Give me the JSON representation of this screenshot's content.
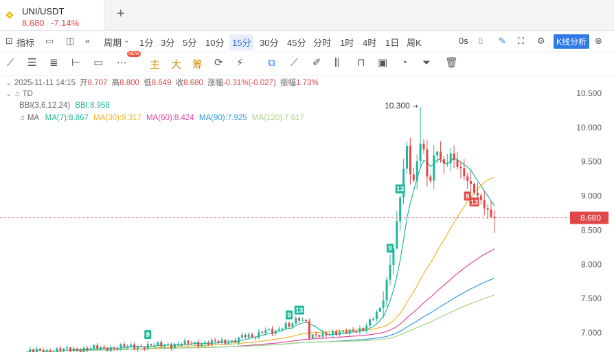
{
  "tab": {
    "symbol": "UNI/USDT",
    "price": "8.680",
    "change": "-7.14%",
    "add_icon": "plus-icon"
  },
  "toolbar": {
    "indicator": "指标",
    "period": "周期",
    "intervals": [
      "1分",
      "3分",
      "5分",
      "10分",
      "15分",
      "30分",
      "45分",
      "分时",
      "1时",
      "4时",
      "1日",
      "周K"
    ],
    "active_interval": "15分",
    "countdown": "0s",
    "kline_analysis": "K线分析"
  },
  "draw_tools": {
    "zhu": "主",
    "da": "大",
    "chou": "筹",
    "new_badge": "NEW"
  },
  "info": {
    "date": "2025-11-11 14:15",
    "open_label": "开",
    "open": "8.707",
    "high_label": "高",
    "high": "8.800",
    "low_label": "低",
    "low": "8.649",
    "close_label": "收",
    "close": "8.680",
    "change_label": "涨幅",
    "change": "-0.31%(-0.027)",
    "amp_label": "振幅",
    "amp": "1.73%",
    "td": "TD",
    "bbi_label": "BBI(3,6,12,24)",
    "bbi": "BBI:8.958",
    "ma_label": "MA",
    "ma7": "MA(7):8.867",
    "ma30": "MA(30):9.317",
    "ma60": "MA(60):8.424",
    "ma90": "MA(90):7.925",
    "ma120": "MA(120):7.617"
  },
  "colors": {
    "ma7": "#1fb89b",
    "ma30": "#f0b429",
    "ma60": "#e0479e",
    "ma90": "#2f9be0",
    "ma120": "#a7d67f",
    "up": "#1fb89b",
    "down": "#e04848"
  },
  "chart_data": {
    "type": "candlestick",
    "y_ticks": [
      "10.500",
      "10.000",
      "9.500",
      "9.000",
      "8.500",
      "8.000",
      "7.500",
      "7.000"
    ],
    "ylim": [
      6.7,
      10.6
    ],
    "current_price": "8.680",
    "high_marker": "10.300",
    "td_labels": [
      {
        "text": "9",
        "color": "up",
        "bar": 36
      },
      {
        "text": "9",
        "color": "up",
        "bar": 78
      },
      {
        "text": "13",
        "color": "up",
        "bar": 81
      },
      {
        "text": "9",
        "color": "up",
        "bar": 108
      },
      {
        "text": "13",
        "color": "up",
        "bar": 111
      },
      {
        "text": "9",
        "color": "down",
        "bar": 131
      },
      {
        "text": "13",
        "color": "down",
        "bar": 133
      }
    ]
  }
}
